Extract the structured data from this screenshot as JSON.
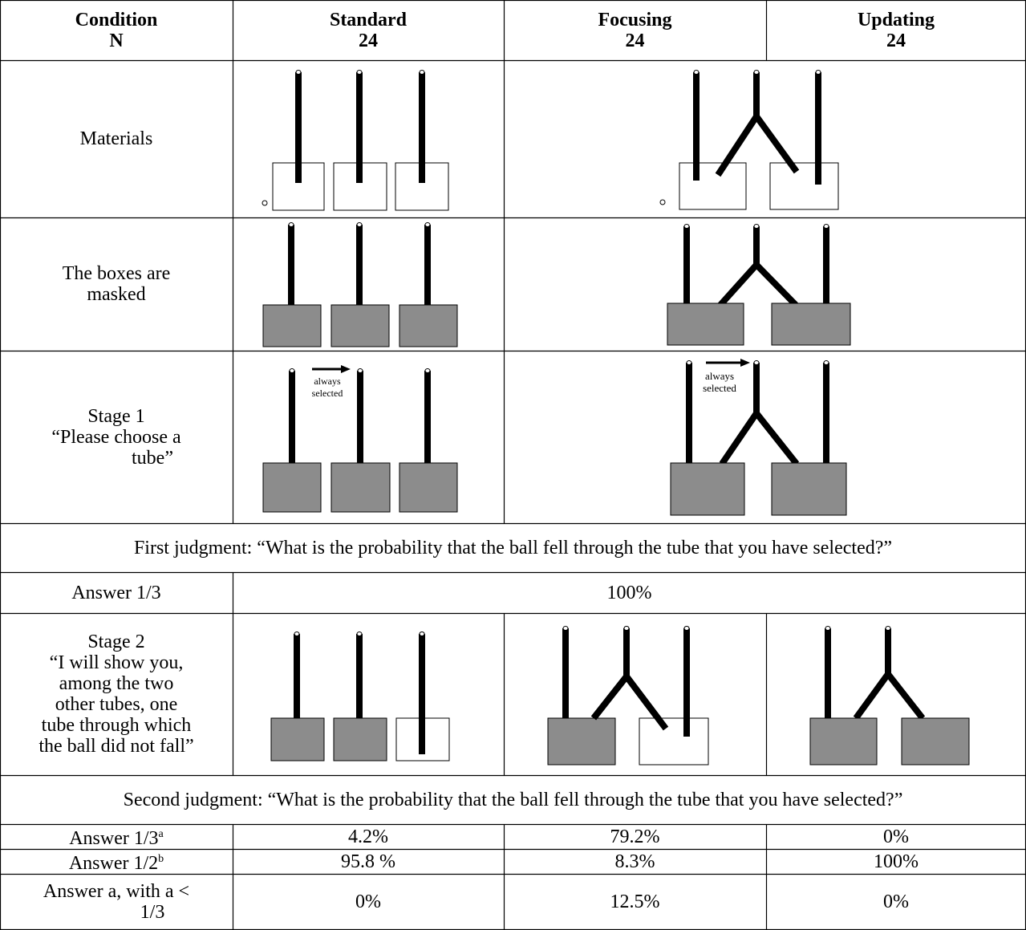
{
  "header": {
    "condition": {
      "title": "Condition",
      "n": "N"
    },
    "standard": {
      "title": "Standard",
      "n": "24"
    },
    "focusing": {
      "title": "Focusing",
      "n": "24"
    },
    "updating": {
      "title": "Updating",
      "n": "24"
    }
  },
  "materials": {
    "label": "Materials"
  },
  "masked": {
    "label_lines": [
      "The boxes are",
      "masked"
    ]
  },
  "stage1": {
    "label_lines": [
      "Stage 1",
      "“Please choose a",
      "tube”"
    ],
    "standard_note": [
      "always",
      "selected"
    ],
    "focusing_note": [
      "always",
      "selected"
    ]
  },
  "first_judgment": "First judgment: “What is the probability that the ball fell through the tube that you have selected?”",
  "first_answer": {
    "label": "Answer 1/3",
    "value": "100%"
  },
  "stage2": {
    "label_lines": [
      "Stage 2",
      "“I will show you,",
      "among the two",
      "other tubes, one",
      "tube through which",
      "the ball did not fall”"
    ]
  },
  "second_judgment": "Second judgment: “What is the probability that the ball fell through the tube that you have selected?”",
  "results": [
    {
      "label": "Answer 1/3",
      "sup": "a",
      "values": [
        "4.2%",
        "79.2%",
        "0%"
      ]
    },
    {
      "label": "Answer 1/2",
      "sup": "b",
      "values": [
        "95.8 %",
        "8.3%",
        "100%"
      ]
    },
    {
      "label_lines": [
        "Answer a, with a <",
        "1/3"
      ],
      "values": [
        "0%",
        "12.5%",
        "0%"
      ]
    }
  ]
}
